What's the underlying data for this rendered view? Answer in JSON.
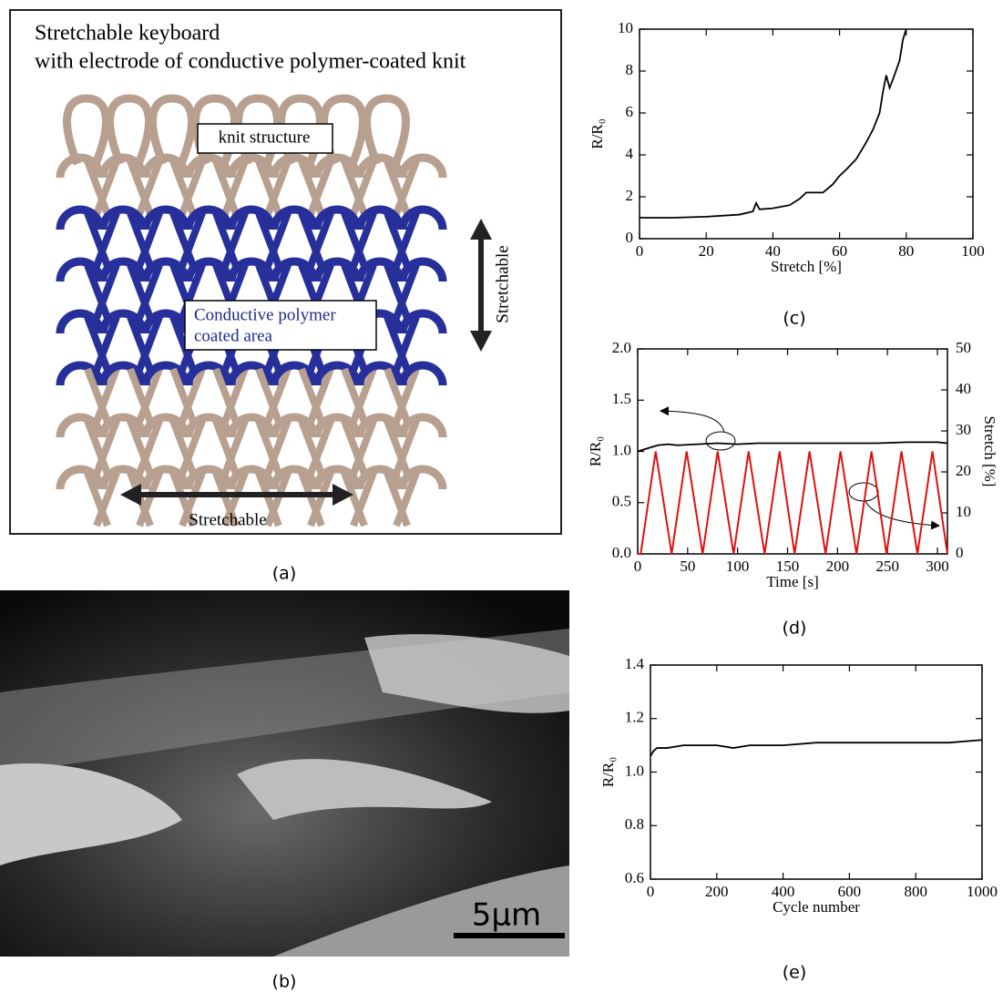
{
  "figure_a": {
    "title_lines": [
      "Stretchable keyboard",
      "with electrode of conductive polymer-coated knit"
    ],
    "knit_label": "knit structure",
    "coated_label_lines": [
      "Conductive polymer",
      "coated area"
    ],
    "horizontal_label": "Stretchable",
    "vertical_label": "Stretchable",
    "caption": "(a)"
  },
  "figure_b": {
    "scale_bar": "5μm",
    "caption": "(b)"
  },
  "chart_data": [
    {
      "type": "line",
      "x_label": "Stretch [%]",
      "y_label": "R/R₀",
      "caption": "(c)",
      "x": [
        0,
        10,
        20,
        30,
        34,
        35,
        36,
        40,
        45,
        48,
        50,
        55,
        58,
        60,
        62,
        65,
        68,
        70,
        72,
        73,
        74,
        75,
        76,
        78,
        79,
        80
      ],
      "series": [
        {
          "color": "#000000",
          "values": [
            1.0,
            1.0,
            1.05,
            1.15,
            1.3,
            1.7,
            1.4,
            1.45,
            1.6,
            1.9,
            2.2,
            2.2,
            2.6,
            3.0,
            3.3,
            3.8,
            4.6,
            5.2,
            6.0,
            7.0,
            7.8,
            7.2,
            7.6,
            8.5,
            9.5,
            10.0
          ]
        }
      ],
      "xlim": [
        0,
        100
      ],
      "xticks": [
        0,
        20,
        40,
        60,
        80,
        100
      ],
      "ylim": [
        0,
        10
      ],
      "yticks": [
        0,
        2,
        4,
        6,
        8,
        10
      ]
    },
    {
      "type": "line",
      "x_label": "Time [s]",
      "y_label": "R/R₀",
      "y2_label": "Stretch [%]",
      "caption": "(d)",
      "series": [
        {
          "color": "#000000",
          "x": [
            0,
            10,
            20,
            30,
            40,
            60,
            80,
            100,
            120,
            150,
            180,
            210,
            240,
            270,
            300,
            310
          ],
          "values": [
            1.0,
            1.03,
            1.06,
            1.07,
            1.06,
            1.07,
            1.08,
            1.07,
            1.08,
            1.08,
            1.08,
            1.08,
            1.08,
            1.09,
            1.09,
            1.08
          ]
        },
        {
          "color": "#e01010",
          "axis": "y2",
          "x": [
            0,
            3,
            18,
            34,
            49,
            65,
            80,
            96,
            111,
            127,
            142,
            157,
            172,
            188,
            203,
            219,
            234,
            249,
            264,
            280,
            295,
            310
          ],
          "values": [
            0,
            0,
            25,
            0,
            25,
            0,
            25,
            0,
            25,
            0,
            25,
            0,
            25,
            0,
            25,
            0,
            25,
            0,
            25,
            0,
            25,
            0
          ]
        }
      ],
      "xlim": [
        0,
        310
      ],
      "xticks": [
        0,
        50,
        100,
        150,
        200,
        250,
        300
      ],
      "ylim": [
        0,
        2
      ],
      "yticks": [
        {
          "value": 0,
          "label": "0.0"
        },
        0.5,
        {
          "value": 1,
          "label": "1.0"
        },
        1.5,
        {
          "value": 2,
          "label": "2.0"
        }
      ],
      "y2lim": [
        0,
        50
      ],
      "y2ticks": [
        0,
        10,
        20,
        30,
        40,
        50
      ]
    },
    {
      "type": "line",
      "x_label": "Cycle number",
      "y_label": "R/R₀",
      "caption": "(e)",
      "x": [
        0,
        10,
        20,
        50,
        100,
        200,
        250,
        300,
        400,
        500,
        600,
        750,
        800,
        900,
        1000
      ],
      "series": [
        {
          "color": "#000000",
          "values": [
            1.06,
            1.08,
            1.09,
            1.09,
            1.1,
            1.1,
            1.09,
            1.1,
            1.1,
            1.11,
            1.11,
            1.11,
            1.11,
            1.11,
            1.12
          ]
        }
      ],
      "xlim": [
        0,
        1000
      ],
      "xticks": [
        0,
        200,
        400,
        600,
        800,
        1000
      ],
      "ylim": [
        0.6,
        1.4
      ],
      "yticks": [
        0.6,
        0.8,
        {
          "value": 1,
          "label": "1.0"
        },
        1.2,
        1.4
      ]
    }
  ]
}
